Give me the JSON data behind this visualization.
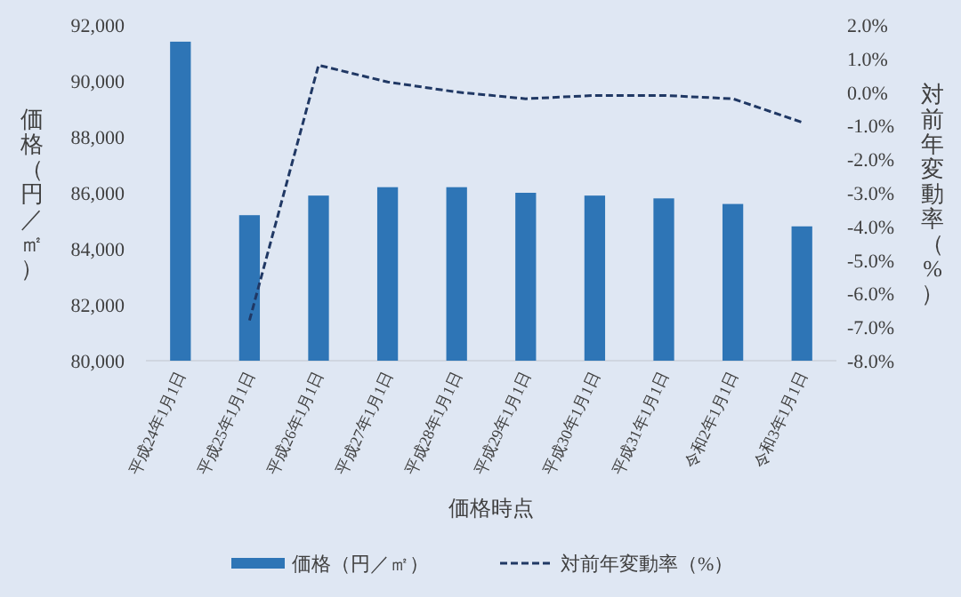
{
  "chart_data": {
    "type": "bar",
    "xlabel": "価格時点",
    "ylabel": "価格（円／㎡）",
    "y2label": "対前年変動率（%）",
    "categories": [
      "平成24年1月1日",
      "平成25年1月1日",
      "平成26年1月1日",
      "平成27年1月1日",
      "平成28年1月1日",
      "平成29年1月1日",
      "平成30年1月1日",
      "平成31年1月1日",
      "令和2年1月1日",
      "令和3年1月1日"
    ],
    "series": [
      {
        "name": "価格（円／㎡）",
        "color": "#2e75b6",
        "values": [
          91400,
          85200,
          85900,
          86200,
          86200,
          86000,
          85900,
          85800,
          85600,
          84800
        ]
      },
      {
        "name": "対前年変動率（%）",
        "type": "line",
        "axis": "y2",
        "color": "#203864",
        "line_style": "dashed",
        "values": [
          null,
          -6.8,
          0.8,
          0.3,
          0.0,
          -0.2,
          -0.1,
          -0.1,
          -0.2,
          -0.9
        ]
      }
    ],
    "ylim": [
      80000,
      92000
    ],
    "yticks": [
      {
        "value": 80000,
        "label": "80,000"
      },
      {
        "value": 82000,
        "label": "82,000"
      },
      {
        "value": 84000,
        "label": "84,000"
      },
      {
        "value": 86000,
        "label": "86,000"
      },
      {
        "value": 88000,
        "label": "88,000"
      },
      {
        "value": 90000,
        "label": "90,000"
      },
      {
        "value": 92000,
        "label": "92,000"
      }
    ],
    "y2lim": [
      -8,
      2
    ],
    "y2ticks": [
      {
        "value": 2,
        "label": "2.0%"
      },
      {
        "value": 1,
        "label": "1.0%"
      },
      {
        "value": 0,
        "label": "0.0%"
      },
      {
        "value": -1,
        "label": "-1.0%"
      },
      {
        "value": -2,
        "label": "-2.0%"
      },
      {
        "value": -3,
        "label": "-3.0%"
      },
      {
        "value": -4,
        "label": "-4.0%"
      },
      {
        "value": -5,
        "label": "-5.0%"
      },
      {
        "value": -6,
        "label": "-6.0%"
      },
      {
        "value": -7,
        "label": "-7.0%"
      },
      {
        "value": -8,
        "label": "-8.0%"
      }
    ],
    "grid": false,
    "legend": "bottom"
  }
}
